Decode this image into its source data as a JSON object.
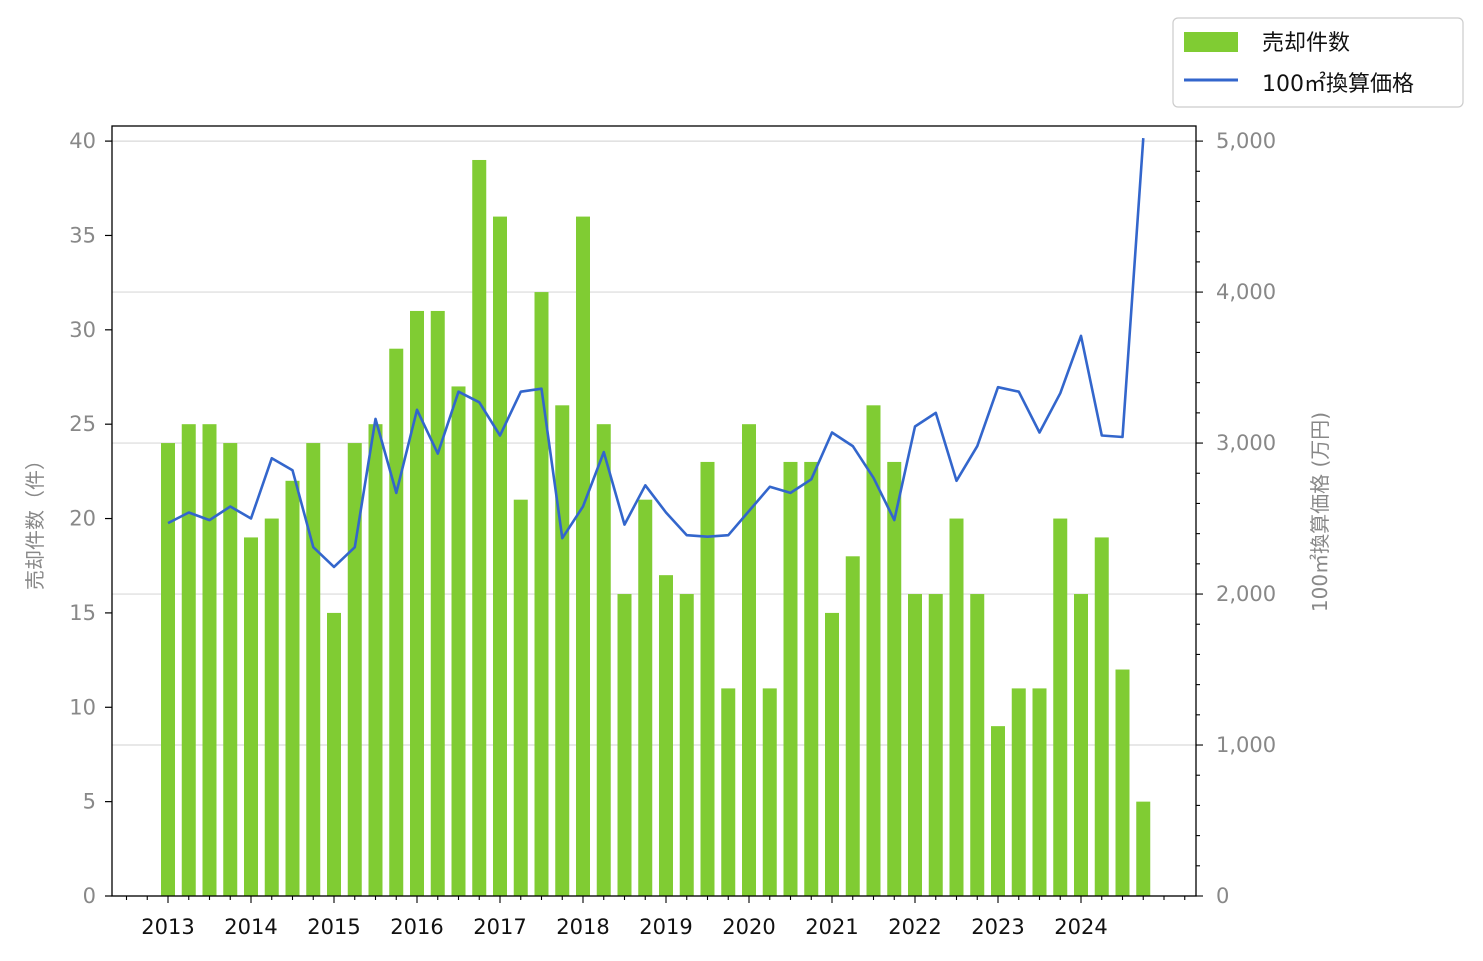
{
  "colors": {
    "bar": "#80cc33",
    "line": "#3366cc",
    "grid": "#d9d9d9",
    "axis_text": "#888888"
  },
  "chart_data": {
    "type": "bar",
    "title": "",
    "ylabel": "売却件数（件）",
    "y2label": "100㎡換算価格 (万円)",
    "ylim": [
      0,
      40.8
    ],
    "y2lim": [
      0,
      5100
    ],
    "yticks": [
      "0",
      "5",
      "10",
      "15",
      "20",
      "25",
      "30",
      "35",
      "40"
    ],
    "y2ticks": [
      "0",
      "1,000",
      "2,000",
      "3,000",
      "4,000",
      "5,000"
    ],
    "xticks": [
      "2013",
      "2014",
      "2015",
      "2016",
      "2017",
      "2018",
      "2019",
      "2020",
      "2021",
      "2022",
      "2023",
      "2024"
    ],
    "x_start_year": 2013,
    "grid": "horizontal",
    "legend_position": "top-right",
    "series": [
      {
        "name": "売却件数",
        "type": "bar",
        "axis": "left",
        "values": [
          24,
          25,
          25,
          24,
          19,
          20,
          22,
          24,
          15,
          24,
          25,
          29,
          31,
          31,
          27,
          39,
          36,
          21,
          32,
          26,
          36,
          25,
          16,
          21,
          17,
          16,
          23,
          11,
          25,
          11,
          23,
          23,
          15,
          18,
          26,
          23,
          16,
          16,
          20,
          16,
          9,
          11,
          11,
          20,
          16,
          19,
          12,
          5
        ]
      },
      {
        "name": "100㎡換算価格",
        "type": "line",
        "axis": "right",
        "values": [
          2470,
          2540,
          2490,
          2580,
          2500,
          2900,
          2820,
          2310,
          2180,
          2310,
          3160,
          2670,
          3220,
          2930,
          3340,
          3270,
          3050,
          3340,
          3360,
          2370,
          2580,
          2940,
          2460,
          2720,
          2540,
          2390,
          2380,
          2390,
          2550,
          2710,
          2670,
          2760,
          3070,
          2980,
          2770,
          2490,
          3110,
          3200,
          2750,
          2980,
          3370,
          3340,
          3070,
          3330,
          3710,
          3050,
          3040,
          5020
        ]
      }
    ]
  }
}
